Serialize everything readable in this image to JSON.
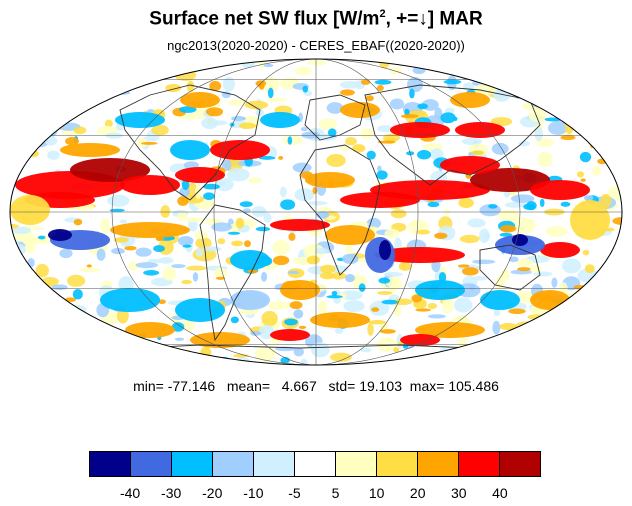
{
  "title": {
    "text_before_sup": "Surface net SW flux [W/m",
    "sup": "2",
    "text_after_sup": ", +=↓]  MAR"
  },
  "subtitle": "ngc2013(2020-2020) - CERES_EBAF((2020-2020))",
  "stats": {
    "min_label": "min=",
    "min": "-77.146",
    "mean_label": "mean=",
    "mean": "4.667",
    "std_label": "std=",
    "std": "19.103",
    "max_label": "max=",
    "max": "105.486"
  },
  "map": {
    "projection": "Mollweide",
    "grid": true,
    "coastlines": true,
    "field": "surface net shortwave flux difference (model minus CERES_EBAF)"
  },
  "colorbar": {
    "colors": [
      "#00008b",
      "#4169e1",
      "#00bfff",
      "#a0cfff",
      "#d0f0ff",
      "#ffffff",
      "#ffffc0",
      "#ffdd44",
      "#ffa500",
      "#ff0000",
      "#b00000"
    ],
    "tick_labels": [
      "-40",
      "-30",
      "-20",
      "-10",
      "-5",
      "5",
      "10",
      "20",
      "30",
      "40"
    ]
  }
}
